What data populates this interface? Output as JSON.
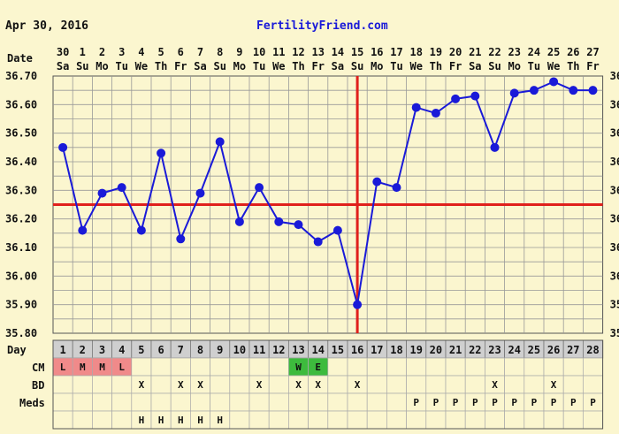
{
  "header": {
    "date": "Apr 30, 2016",
    "site": "FertilityFriend.com"
  },
  "row_labels": {
    "date": "Date",
    "day": "Day",
    "cm": "CM",
    "bd": "BD",
    "meds": "Meds"
  },
  "chart_data": {
    "type": "line",
    "x": [
      1,
      2,
      3,
      4,
      5,
      6,
      7,
      8,
      9,
      10,
      11,
      12,
      13,
      14,
      15,
      16,
      17,
      18,
      19,
      20,
      21,
      22,
      23,
      24,
      25,
      26,
      27,
      28
    ],
    "dates": [
      "30",
      "1",
      "2",
      "3",
      "4",
      "5",
      "6",
      "7",
      "8",
      "9",
      "10",
      "11",
      "12",
      "13",
      "14",
      "15",
      "16",
      "17",
      "18",
      "19",
      "20",
      "21",
      "22",
      "23",
      "24",
      "25",
      "26",
      "27"
    ],
    "weekdays": [
      "Sa",
      "Su",
      "Mo",
      "Tu",
      "We",
      "Th",
      "Fr",
      "Sa",
      "Su",
      "Mo",
      "Tu",
      "We",
      "Th",
      "Fr",
      "Sa",
      "Su",
      "Mo",
      "Tu",
      "We",
      "Th",
      "Fr",
      "Sa",
      "Su",
      "Mo",
      "Tu",
      "We",
      "Th",
      "Fr"
    ],
    "values": [
      36.45,
      36.16,
      36.29,
      36.31,
      36.16,
      36.43,
      36.13,
      36.29,
      36.47,
      36.19,
      36.31,
      36.19,
      36.18,
      36.12,
      36.16,
      35.9,
      36.33,
      36.31,
      36.59,
      36.57,
      36.62,
      36.63,
      36.45,
      36.64,
      36.65,
      36.68,
      36.65,
      36.65
    ],
    "ylim": [
      35.8,
      36.7
    ],
    "yticks": [
      "36.70",
      "36.60",
      "36.50",
      "36.40",
      "36.30",
      "36.20",
      "36.10",
      "36.00",
      "35.90",
      "35.80"
    ],
    "coverline": 36.25,
    "ovulation_day": 16,
    "grid": true,
    "colors": {
      "line": "#1a1ad8",
      "point": "#1a1ad8",
      "marker": "#e0201c",
      "bg": "#fbf6cf",
      "grid": "#888888"
    }
  },
  "rows": {
    "cm": {
      "1": "L",
      "2": "M",
      "3": "M",
      "4": "L",
      "13": "W",
      "14": "E"
    },
    "cm_colors": {
      "L": "#f08a8a",
      "M": "#f08a8a",
      "W": "#3dbb3d",
      "E": "#3dbb3d"
    },
    "bd": {
      "5": "X",
      "7": "X",
      "8": "X",
      "11": "X",
      "13": "X",
      "14": "X",
      "16": "X",
      "23": "X",
      "26": "X"
    },
    "meds": {
      "19": "P",
      "20": "P",
      "21": "P",
      "22": "P",
      "23": "P",
      "24": "P",
      "25": "P",
      "26": "P",
      "27": "P",
      "28": "P"
    },
    "extra": {
      "5": "H",
      "6": "H",
      "7": "H",
      "8": "H",
      "9": "H"
    }
  }
}
